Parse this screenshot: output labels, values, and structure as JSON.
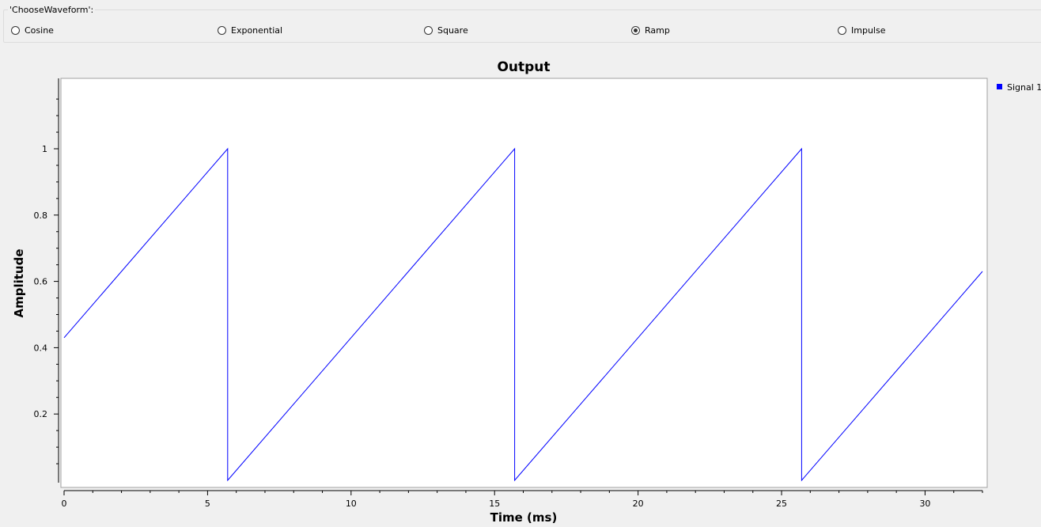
{
  "group": {
    "title": "'ChooseWaveform':",
    "options": [
      {
        "label": "Cosine",
        "checked": false
      },
      {
        "label": "Exponential",
        "checked": false
      },
      {
        "label": "Square",
        "checked": false
      },
      {
        "label": "Ramp",
        "checked": true
      },
      {
        "label": "Impulse",
        "checked": false
      }
    ]
  },
  "chart_data": {
    "type": "line",
    "title": "Output",
    "xlabel": "Time (ms)",
    "ylabel": "Amplitude",
    "xlim": [
      0,
      32
    ],
    "ylim": [
      -0.02,
      1.2
    ],
    "x_ticks": [
      0,
      5,
      10,
      15,
      20,
      25,
      30
    ],
    "y_ticks": [
      0.2,
      0.4,
      0.6,
      0.8,
      1
    ],
    "grid": false,
    "legend": "top-right",
    "series": [
      {
        "name": "Signal 1",
        "color": "#0000ff",
        "x": [
          0,
          5.7,
          5.7,
          15.7,
          15.7,
          25.7,
          25.7,
          32
        ],
        "y": [
          0.43,
          1.0,
          0.0,
          1.0,
          0.0,
          1.0,
          0.0,
          0.63
        ]
      }
    ]
  }
}
